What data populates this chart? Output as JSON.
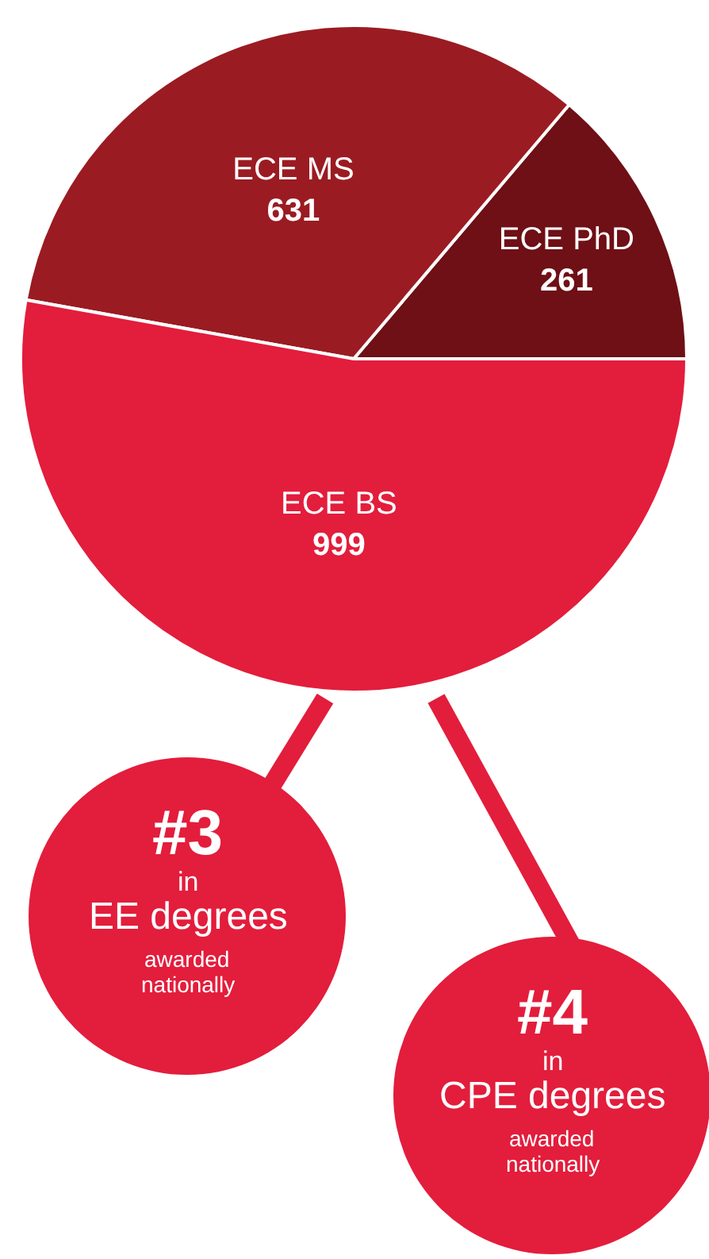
{
  "chart_data": {
    "type": "pie",
    "categories": [
      "ECE PhD",
      "ECE MS",
      "ECE BS"
    ],
    "values": [
      261,
      631,
      999
    ],
    "colors": [
      "#6e1016",
      "#9b1b22",
      "#e31d3c"
    ],
    "data_labels": true,
    "legend": false,
    "annotations": [
      "#3\nin\nEE degrees\nawarded\nnationally",
      "#4\nin\nCPE degrees\nawarded\nnationally"
    ]
  }
}
